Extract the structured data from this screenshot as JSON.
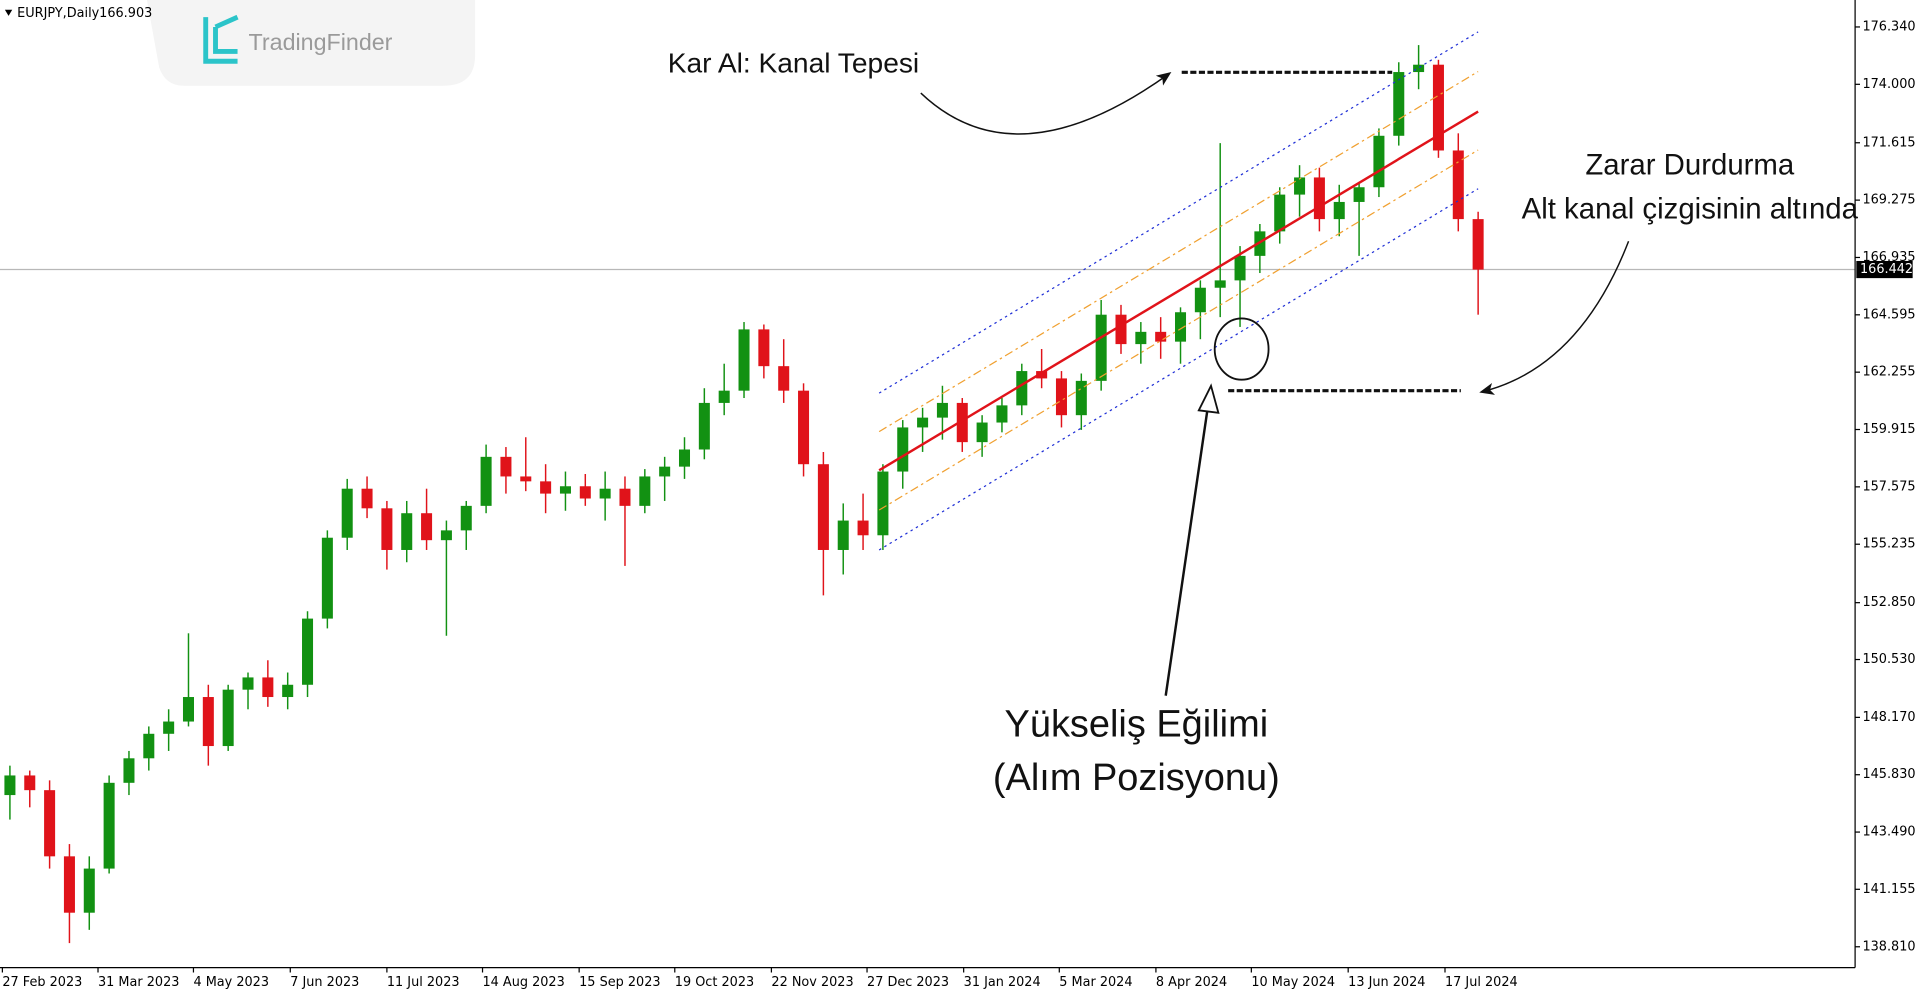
{
  "chart_data": {
    "type": "candlestick",
    "title": "EURJPY,Daily",
    "header_price": "166.903",
    "watermark": "TradingFinder",
    "up_color": "#129112",
    "down_color": "#e0131a",
    "grid": false,
    "xlim": [
      -0.5,
      93
    ],
    "ylim": [
      137.96,
      177.44
    ],
    "xticks": [
      {
        "value": -0.38,
        "label": "27 Feb 2023"
      },
      {
        "value": 4.44,
        "label": "31 Mar 2023"
      },
      {
        "value": 9.25,
        "label": "4 May 2023"
      },
      {
        "value": 14.13,
        "label": "7 Jun 2023"
      },
      {
        "value": 19.0,
        "label": "11 Jul 2023"
      },
      {
        "value": 23.82,
        "label": "14 Aug 2023"
      },
      {
        "value": 28.69,
        "label": "15 Sep 2023"
      },
      {
        "value": 33.51,
        "label": "19 Oct 2023"
      },
      {
        "value": 38.38,
        "label": "22 Nov 2023"
      },
      {
        "value": 43.2,
        "label": "27 Dec 2023"
      },
      {
        "value": 48.07,
        "label": "31 Jan 2024"
      },
      {
        "value": 52.89,
        "label": "5 Mar 2024"
      },
      {
        "value": 57.76,
        "label": "8 Apr 2024"
      },
      {
        "value": 62.57,
        "label": "10 May 2024"
      },
      {
        "value": 67.45,
        "label": "13 Jun 2024"
      },
      {
        "value": 72.33,
        "label": "17 Jul 2024"
      }
    ],
    "yticks": [
      {
        "value": 176.34,
        "label": "176.340"
      },
      {
        "value": 174.0,
        "label": "174.000"
      },
      {
        "value": 171.615,
        "label": "171.615"
      },
      {
        "value": 169.275,
        "label": "169.275"
      },
      {
        "value": 166.935,
        "label": "166.935"
      },
      {
        "value": 164.595,
        "label": "164.595"
      },
      {
        "value": 162.255,
        "label": "162.255"
      },
      {
        "value": 159.915,
        "label": "159.915"
      },
      {
        "value": 157.575,
        "label": "157.575"
      },
      {
        "value": 155.235,
        "label": "155.235"
      },
      {
        "value": 152.85,
        "label": "152.850"
      },
      {
        "value": 150.53,
        "label": "150.530"
      },
      {
        "value": 148.17,
        "label": "148.170"
      },
      {
        "value": 145.83,
        "label": "145.830"
      },
      {
        "value": 143.49,
        "label": "143.490"
      },
      {
        "value": 141.155,
        "label": "141.155"
      },
      {
        "value": 138.81,
        "label": "138.810"
      }
    ],
    "last_price": {
      "value": 166.442,
      "label": "166.442"
    },
    "candles": {
      "open": [
        145.0,
        145.8,
        145.2,
        142.5,
        140.2,
        142.0,
        145.5,
        146.5,
        147.5,
        148.0,
        149.0,
        147.0,
        149.3,
        149.8,
        149.0,
        149.5,
        152.2,
        155.5,
        157.5,
        156.7,
        155.0,
        156.5,
        155.4,
        155.8,
        156.8,
        158.8,
        158.0,
        157.8,
        157.3,
        157.6,
        157.1,
        157.5,
        156.8,
        158.0,
        158.4,
        159.1,
        161.0,
        161.5,
        164.0,
        162.5,
        161.5,
        158.5,
        155.0,
        156.2,
        155.6,
        158.2,
        160.0,
        160.4,
        161.0,
        159.4,
        160.2,
        160.9,
        162.3,
        162.0,
        160.5,
        161.9,
        164.6,
        163.4,
        163.9,
        163.5,
        164.7,
        165.7,
        166.0,
        167.0,
        168.0,
        169.5,
        170.2,
        168.5,
        169.2,
        169.8,
        171.9,
        174.5,
        174.8,
        171.3,
        168.5
      ],
      "high": [
        146.2,
        146.0,
        145.6,
        143.0,
        142.5,
        145.8,
        146.8,
        147.8,
        148.5,
        151.6,
        149.5,
        149.5,
        150.0,
        150.5,
        150.0,
        152.5,
        155.8,
        157.9,
        158.0,
        157.0,
        157.0,
        157.5,
        156.2,
        157.0,
        159.3,
        159.2,
        159.6,
        158.5,
        158.2,
        158.1,
        158.2,
        158.0,
        158.3,
        158.8,
        159.6,
        161.6,
        162.6,
        164.3,
        164.2,
        163.6,
        161.8,
        159.0,
        156.9,
        157.3,
        158.5,
        160.3,
        160.8,
        161.7,
        161.2,
        160.5,
        161.2,
        162.6,
        163.2,
        162.3,
        162.2,
        165.2,
        165.0,
        164.3,
        164.5,
        164.9,
        166.0,
        171.6,
        167.4,
        168.3,
        169.8,
        170.7,
        170.6,
        169.9,
        170.0,
        172.2,
        174.9,
        175.6,
        175.0,
        172.0,
        168.8
      ],
      "low": [
        144.0,
        144.5,
        142.0,
        138.96,
        139.5,
        141.8,
        145.0,
        146.0,
        146.8,
        147.8,
        146.2,
        146.8,
        148.5,
        148.6,
        148.5,
        149.0,
        151.8,
        155.0,
        156.3,
        154.2,
        154.5,
        155.0,
        151.5,
        155.0,
        156.5,
        157.3,
        157.4,
        156.5,
        156.6,
        156.8,
        156.2,
        154.35,
        156.5,
        157.0,
        157.9,
        158.7,
        160.5,
        161.2,
        162.0,
        161.0,
        158.0,
        153.15,
        154.0,
        155.0,
        155.0,
        157.5,
        159.0,
        159.5,
        159.0,
        158.8,
        159.8,
        160.5,
        161.6,
        160.0,
        159.9,
        161.5,
        163.0,
        162.6,
        162.8,
        162.6,
        163.6,
        164.5,
        164.1,
        166.3,
        167.5,
        168.6,
        168.0,
        167.8,
        167.0,
        169.4,
        171.5,
        173.8,
        171.0,
        168.0,
        164.6
      ],
      "close": [
        145.8,
        145.2,
        142.5,
        140.2,
        142.0,
        145.5,
        146.5,
        147.5,
        148.0,
        149.0,
        147.0,
        149.3,
        149.8,
        149.0,
        149.5,
        152.2,
        155.5,
        157.5,
        156.7,
        155.0,
        156.5,
        155.4,
        155.8,
        156.8,
        158.8,
        158.0,
        157.8,
        157.3,
        157.6,
        157.1,
        157.5,
        156.8,
        158.0,
        158.4,
        159.1,
        161.0,
        161.5,
        164.0,
        162.5,
        161.5,
        158.5,
        155.0,
        156.2,
        155.6,
        158.2,
        160.0,
        160.4,
        161.0,
        159.4,
        160.2,
        160.9,
        162.3,
        162.0,
        160.5,
        161.9,
        164.6,
        163.4,
        163.9,
        163.5,
        164.7,
        165.7,
        166.0,
        167.0,
        168.0,
        169.5,
        170.2,
        168.5,
        169.2,
        169.8,
        171.9,
        174.5,
        174.8,
        171.3,
        168.5,
        166.44
      ]
    },
    "channel_lines": [
      {
        "color": "#1f2fd6",
        "style": "dotted",
        "x": [
          43.81,
          74
        ],
        "values": [
          161.4,
          176.14
        ]
      },
      {
        "color": "#f0a030",
        "style": "dashdot",
        "x": [
          43.81,
          74
        ],
        "values": [
          159.83,
          174.52
        ]
      },
      {
        "color": "#e0131a",
        "style": "solid",
        "x": [
          43.81,
          74
        ],
        "values": [
          158.25,
          172.89
        ]
      },
      {
        "color": "#f0a030",
        "style": "dashdot",
        "x": [
          43.81,
          74
        ],
        "values": [
          156.63,
          171.32
        ]
      },
      {
        "color": "#1f2fd6",
        "style": "dotted",
        "x": [
          43.81,
          74
        ],
        "values": [
          155.0,
          169.74
        ]
      }
    ],
    "levels": [
      {
        "value": 174.49,
        "x": [
          59.06,
          69.67
        ]
      },
      {
        "value": 161.5,
        "x": [
          61.4,
          73.13
        ]
      }
    ],
    "annotations": {
      "take_profit": "Kar Al: Kanal Tepesi",
      "stop_loss_title": "Zarar Durdurma",
      "stop_loss_detail": "Alt kanal çizgisinin altında",
      "trend": "Yükseliş Eğilimi",
      "position": "(Alım Pozisyonu)"
    }
  }
}
